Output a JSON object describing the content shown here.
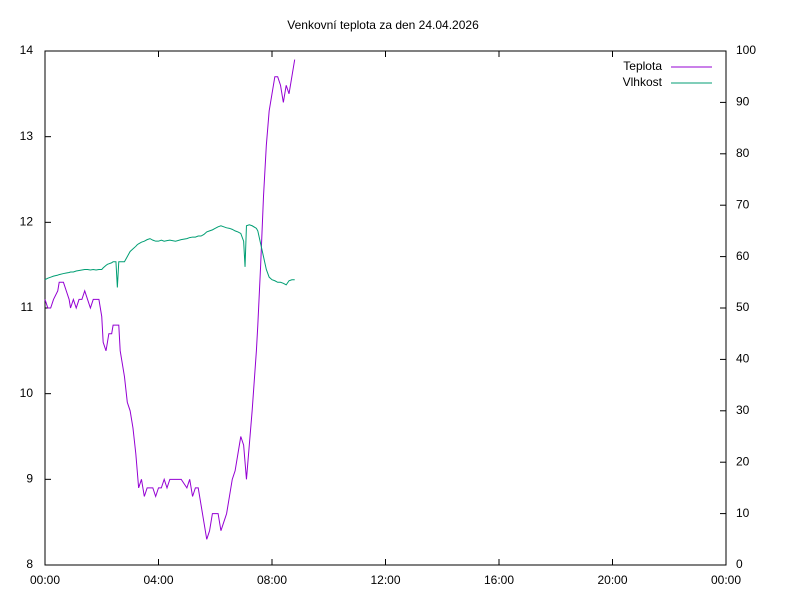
{
  "chart_data": {
    "type": "line",
    "title": "Venkovní teplota za den 24.04.2026",
    "x": [
      0.0,
      0.1,
      0.2,
      0.3,
      0.45,
      0.5,
      0.65,
      0.75,
      0.85,
      0.9,
      1.0,
      1.1,
      1.2,
      1.3,
      1.4,
      1.5,
      1.6,
      1.7,
      1.8,
      1.9,
      2.0,
      2.05,
      2.15,
      2.2,
      2.25,
      2.35,
      2.4,
      2.5,
      2.55,
      2.6,
      2.65,
      2.8,
      2.9,
      3.0,
      3.1,
      3.2,
      3.25,
      3.3,
      3.4,
      3.5,
      3.6,
      3.7,
      3.8,
      3.9,
      4.0,
      4.1,
      4.2,
      4.3,
      4.4,
      4.6,
      4.8,
      5.0,
      5.1,
      5.2,
      5.3,
      5.4,
      5.5,
      5.6,
      5.7,
      5.8,
      5.9,
      6.0,
      6.1,
      6.2,
      6.3,
      6.4,
      6.5,
      6.6,
      6.7,
      6.8,
      6.9,
      7.0,
      7.05,
      7.1,
      7.2,
      7.3,
      7.45,
      7.5,
      7.6,
      7.7,
      7.8,
      7.9,
      8.0,
      8.1,
      8.2,
      8.3,
      8.4,
      8.5,
      8.6,
      8.7,
      8.8
    ],
    "series": [
      {
        "name": "Teplota",
        "color": "#9400d3",
        "axis": "y",
        "values": [
          11.1,
          11.0,
          11.0,
          11.1,
          11.2,
          11.3,
          11.3,
          11.2,
          11.1,
          11.0,
          11.1,
          11.0,
          11.1,
          11.1,
          11.2,
          11.1,
          11.0,
          11.1,
          11.1,
          11.1,
          10.9,
          10.6,
          10.5,
          10.6,
          10.7,
          10.7,
          10.8,
          10.8,
          10.8,
          10.8,
          10.5,
          10.2,
          9.9,
          9.8,
          9.6,
          9.3,
          9.1,
          8.9,
          9.0,
          8.8,
          8.9,
          8.9,
          8.9,
          8.8,
          8.9,
          8.9,
          9.0,
          8.9,
          9.0,
          9.0,
          9.0,
          8.9,
          9.0,
          8.8,
          8.9,
          8.9,
          8.7,
          8.5,
          8.3,
          8.4,
          8.6,
          8.6,
          8.6,
          8.4,
          8.5,
          8.6,
          8.8,
          9.0,
          9.1,
          9.3,
          9.5,
          9.4,
          9.2,
          9.0,
          9.4,
          9.8,
          10.5,
          10.8,
          11.5,
          12.3,
          12.9,
          13.3,
          13.5,
          13.7,
          13.7,
          13.6,
          13.4,
          13.6,
          13.5,
          13.7,
          13.9
        ]
      },
      {
        "name": "Vlhkost",
        "color": "#009e73",
        "axis": "y2",
        "values": [
          55.5,
          55.8,
          56,
          56.2,
          56.4,
          56.5,
          56.7,
          56.8,
          56.9,
          57,
          57,
          57.2,
          57.3,
          57.4,
          57.5,
          57.5,
          57.4,
          57.5,
          57.4,
          57.5,
          57.5,
          57.8,
          58.3,
          58.5,
          58.6,
          58.8,
          59,
          59,
          54,
          59,
          59,
          59,
          60,
          61,
          61.5,
          62,
          62.3,
          62.5,
          62.8,
          63,
          63.3,
          63.5,
          63.2,
          63,
          63,
          63.2,
          63,
          63.1,
          63.2,
          63,
          63.3,
          63.5,
          63.7,
          63.8,
          63.8,
          64,
          64,
          64.3,
          64.8,
          65,
          65.2,
          65.5,
          65.8,
          66,
          65.8,
          65.6,
          65.5,
          65.3,
          65,
          64.8,
          64.5,
          63,
          58,
          66,
          66.2,
          66,
          65.5,
          65,
          62.5,
          60,
          57.5,
          56,
          55.5,
          55.3,
          55,
          55,
          54.8,
          54.5,
          55.3,
          55.5,
          55.5
        ]
      }
    ],
    "xlim": [
      0,
      24
    ],
    "xticks": [
      {
        "value": 0,
        "label": "00:00"
      },
      {
        "value": 4,
        "label": "04:00"
      },
      {
        "value": 8,
        "label": "08:00"
      },
      {
        "value": 12,
        "label": "12:00"
      },
      {
        "value": 16,
        "label": "16:00"
      },
      {
        "value": 20,
        "label": "20:00"
      },
      {
        "value": 24,
        "label": "00:00"
      }
    ],
    "ylim": [
      8,
      14
    ],
    "yticks": [
      8,
      9,
      10,
      11,
      12,
      13,
      14
    ],
    "y2lim": [
      0,
      100
    ],
    "y2ticks": [
      0,
      10,
      20,
      30,
      40,
      50,
      60,
      70,
      80,
      90,
      100
    ],
    "legend": "top-right",
    "grid": false
  }
}
